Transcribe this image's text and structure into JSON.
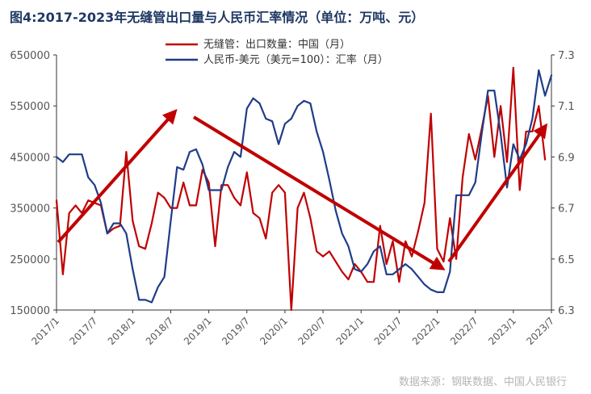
{
  "title": "图4:2017-2023年无缝管出口量与人民币汇率情况（单位：万吨、元）",
  "source": "数据来源：钢联数据、中国人民银行",
  "chart_data": {
    "type": "line",
    "title": "图4:2017-2023年无缝管出口量与人民币汇率情况（单位：万吨、元）",
    "x_labels": [
      "2017/1",
      "2017/7",
      "2018/1",
      "2018/7",
      "2019/1",
      "2019/7",
      "2020/1",
      "2020/7",
      "2021/1",
      "2021/7",
      "2022/1",
      "2022/7",
      "2023/1",
      "2023/7"
    ],
    "x_start": "2017/1",
    "y_left": {
      "ticks": [
        "150000",
        "250000",
        "350000",
        "450000",
        "550000",
        "650000"
      ],
      "min": 150000,
      "max": 650000
    },
    "y_right": {
      "ticks": [
        "6.3",
        "6.5",
        "6.7",
        "6.9",
        "7.1",
        "7.3"
      ],
      "min": 6.3,
      "max": 7.3
    },
    "legend_position": "top-center",
    "grid": false,
    "series": [
      {
        "name": "无缝管：出口数量：中国（月）",
        "axis": "left",
        "color": "#c00000",
        "values": [
          365000,
          220000,
          340000,
          355000,
          340000,
          365000,
          360000,
          355000,
          300000,
          310000,
          315000,
          460000,
          325000,
          275000,
          270000,
          320000,
          380000,
          370000,
          350000,
          350000,
          400000,
          355000,
          355000,
          425000,
          400000,
          275000,
          395000,
          395000,
          370000,
          355000,
          420000,
          340000,
          330000,
          290000,
          380000,
          395000,
          380000,
          150000,
          350000,
          380000,
          330000,
          265000,
          255000,
          265000,
          245000,
          225000,
          210000,
          240000,
          225000,
          205000,
          205000,
          315000,
          240000,
          285000,
          205000,
          285000,
          255000,
          305000,
          360000,
          535000,
          270000,
          245000,
          330000,
          250000,
          410000,
          495000,
          445000,
          505000,
          570000,
          450000,
          550000,
          440000,
          625000,
          385000,
          500000,
          500000,
          550000,
          445000
        ]
      },
      {
        "name": "人民币-美元（美元=100）：汇率（月）",
        "axis": "right",
        "color": "#1f3c88",
        "values": [
          6.9,
          6.88,
          6.91,
          6.91,
          6.91,
          6.82,
          6.79,
          6.72,
          6.6,
          6.64,
          6.64,
          6.6,
          6.46,
          6.34,
          6.34,
          6.33,
          6.39,
          6.43,
          6.65,
          6.86,
          6.85,
          6.92,
          6.93,
          6.87,
          6.77,
          6.77,
          6.77,
          6.86,
          6.92,
          6.9,
          7.09,
          7.13,
          7.11,
          7.05,
          7.04,
          6.95,
          7.03,
          7.05,
          7.1,
          7.12,
          7.11,
          7.0,
          6.92,
          6.81,
          6.69,
          6.6,
          6.55,
          6.46,
          6.45,
          6.48,
          6.53,
          6.55,
          6.44,
          6.44,
          6.46,
          6.48,
          6.46,
          6.43,
          6.4,
          6.38,
          6.37,
          6.37,
          6.45,
          6.75,
          6.75,
          6.75,
          6.8,
          6.99,
          7.16,
          7.16,
          6.99,
          6.78,
          6.95,
          6.89,
          6.95,
          7.05,
          7.24,
          7.14,
          7.22
        ]
      }
    ]
  }
}
